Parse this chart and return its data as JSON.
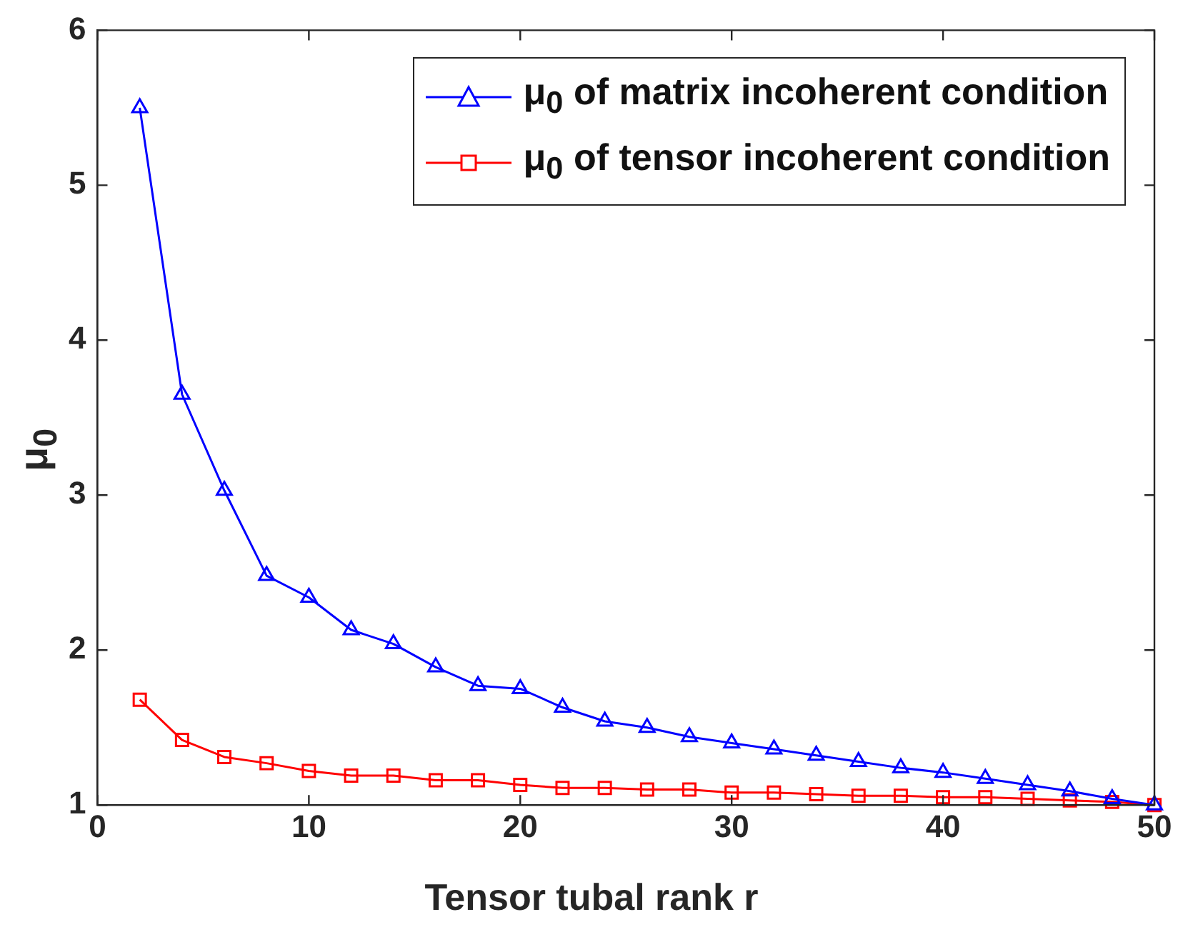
{
  "chart_data": {
    "type": "line",
    "xlabel": "Tensor tubal rank r",
    "ylabel": "μ$_{0}$",
    "x": [
      2,
      4,
      6,
      8,
      10,
      12,
      14,
      16,
      18,
      20,
      22,
      24,
      26,
      28,
      30,
      32,
      34,
      36,
      38,
      40,
      42,
      44,
      46,
      48,
      50
    ],
    "series": [
      {
        "name": "μ$_{0}$ of matrix incoherent condition",
        "color": "#0000ff",
        "marker": "triangle",
        "values": [
          5.5,
          3.65,
          3.03,
          2.48,
          2.34,
          2.13,
          2.04,
          1.89,
          1.77,
          1.75,
          1.63,
          1.54,
          1.5,
          1.44,
          1.4,
          1.36,
          1.32,
          1.28,
          1.24,
          1.21,
          1.17,
          1.13,
          1.09,
          1.04,
          1.0
        ]
      },
      {
        "name": "μ$_{0}$ of tensor incoherent condition",
        "color": "#ff0000",
        "marker": "square",
        "values": [
          1.68,
          1.42,
          1.31,
          1.27,
          1.22,
          1.19,
          1.19,
          1.16,
          1.16,
          1.13,
          1.11,
          1.11,
          1.1,
          1.1,
          1.08,
          1.08,
          1.07,
          1.06,
          1.06,
          1.05,
          1.05,
          1.04,
          1.03,
          1.02,
          1.0
        ]
      }
    ],
    "xlim": [
      0,
      50
    ],
    "xticks": [
      0,
      10,
      20,
      30,
      40,
      50
    ],
    "ylim": [
      1,
      6
    ],
    "yticks": [
      1,
      2,
      3,
      4,
      5,
      6
    ],
    "grid": false,
    "legend": "top right",
    "line_style": "solid"
  }
}
